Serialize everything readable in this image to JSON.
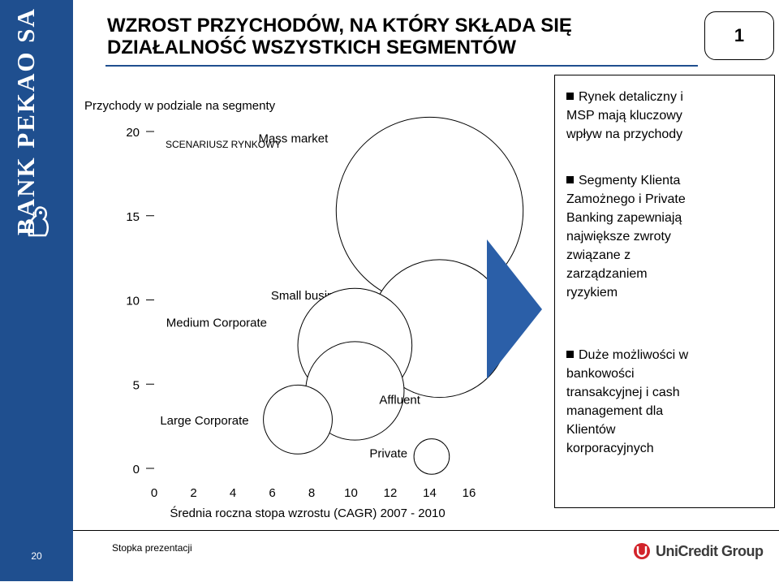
{
  "slide": {
    "title_line1": "WZROST PRZYCHODÓW, NA KTÓRY SKŁADA SIĘ",
    "title_line2": "DZIAŁALNOŚĆ WSZYSTKICH SEGMENTÓW",
    "badge": "1",
    "brand": "BANK PEKAO SA",
    "page_number": "20",
    "footer_text": "Stopka prezentacji",
    "footer_logo": "UniCredit Group",
    "accent_color": "#1f4f8f",
    "logo_color": "#d2232a"
  },
  "chart_data": {
    "type": "bubble",
    "title": "Przychody w podziale na segmenty",
    "annotation": "SCENARIUSZ RYNKOWY",
    "xlabel": "Średnia roczna stopa wzrostu (CAGR) 2007 - 2010",
    "ylabel": "",
    "xlim": [
      0,
      16
    ],
    "ylim": [
      0,
      20
    ],
    "x_ticks": [
      "0",
      "2",
      "4",
      "6",
      "8",
      "10",
      "12",
      "14",
      "16"
    ],
    "y_ticks": [
      "0",
      "5",
      "10",
      "15",
      "20"
    ],
    "grid": false,
    "points": [
      {
        "label": "Mass market",
        "x": 14,
        "y": 15.3,
        "size": 9.5
      },
      {
        "label": "Small business",
        "x": 14.5,
        "y": 8.3,
        "size": 7.0
      },
      {
        "label": "Medium Corporate",
        "x": 10.2,
        "y": 7.3,
        "size": 5.8
      },
      {
        "label": "Affluent",
        "x": 10.2,
        "y": 4.6,
        "size": 5.0
      },
      {
        "label": "Large Corporate",
        "x": 7.3,
        "y": 2.9,
        "size": 3.5
      },
      {
        "label": "Private",
        "x": 14.1,
        "y": 0.7,
        "size": 1.8
      }
    ]
  },
  "bullets": [
    "Rynek detaliczny i\nMSP mają kluczowy\nwpływ na przychody",
    "Segmenty Klienta\nZamożnego i Private\nBanking zapewniają\nnajwiększe zwroty\nzwiązane z\nzarządzaniem\nryzykiem",
    "Duże możliwości w\nbankowości\ntransakcyjnej i cash\nmanagement dla\nKlientów\nkorporacyjnych"
  ]
}
